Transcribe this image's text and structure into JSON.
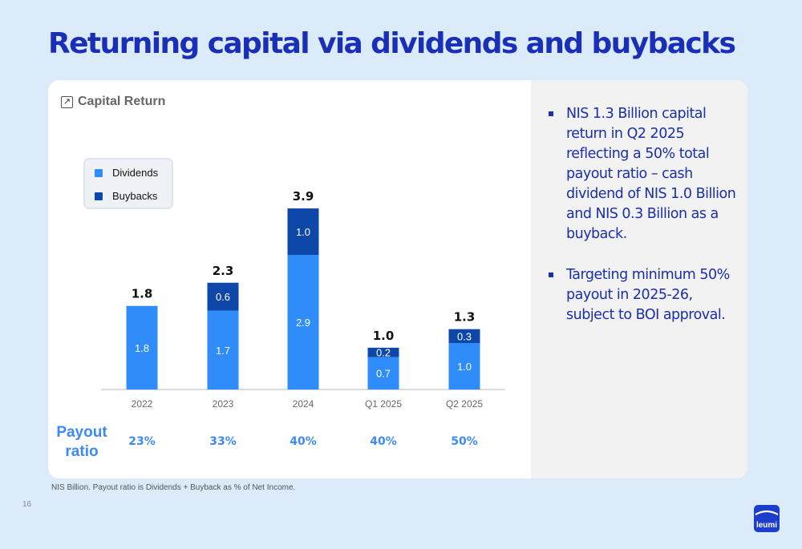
{
  "slide": {
    "title": "Returning capital via dividends and buybacks",
    "page_number": "16",
    "footnote": "NIS Billion. Payout ratio is Dividends + Buyback as % of Net Income.",
    "logo_text": "leumi"
  },
  "card": {
    "header": "Capital Return",
    "header_icon": "arrow-up-right-icon"
  },
  "legend": [
    {
      "label": "Dividends",
      "color": "#2f8cf9"
    },
    {
      "label": "Buybacks",
      "color": "#0d47a8"
    }
  ],
  "payout": {
    "label": "Payout ratio",
    "values": [
      "23%",
      "33%",
      "40%",
      "40%",
      "50%"
    ]
  },
  "chart_data": {
    "type": "bar",
    "stacked": true,
    "categories": [
      "2022",
      "2023",
      "2024",
      "Q1 2025",
      "Q2 2025"
    ],
    "series": [
      {
        "name": "Dividends",
        "values": [
          1.8,
          1.7,
          2.9,
          0.7,
          1.0
        ],
        "color": "#2f8cf9"
      },
      {
        "name": "Buybacks",
        "values": [
          0,
          0.6,
          1.0,
          0.2,
          0.3
        ],
        "color": "#0d47a8"
      }
    ],
    "totals": [
      1.8,
      2.3,
      3.9,
      1.0,
      1.3
    ],
    "title": "",
    "xlabel": "",
    "ylabel": "",
    "ylim": [
      0,
      4.0
    ],
    "legend_position": "top-left",
    "grid": false
  },
  "bullets": [
    "NIS 1.3 Billion capital return in Q2 2025 reflecting a 50% total payout ratio – cash dividend of NIS 1.0 Billion and NIS 0.3 Billion as a buyback.",
    "Targeting minimum 50% payout in 2025-26, subject to BOI approval."
  ]
}
